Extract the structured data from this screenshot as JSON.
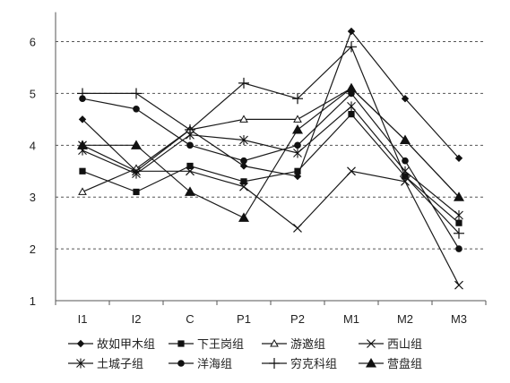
{
  "chart_data": {
    "type": "line",
    "categories": [
      "I1",
      "I2",
      "C",
      "P1",
      "P2",
      "M1",
      "M2",
      "M3"
    ],
    "ylim": [
      1,
      6.5
    ],
    "yticks": [
      1,
      2,
      3,
      4,
      5,
      6
    ],
    "grid": "horizontal dashed",
    "legend_position": "bottom",
    "series": [
      {
        "name": "故如甲木组",
        "marker": "diamond",
        "values": [
          4.5,
          3.5,
          4.3,
          3.6,
          3.4,
          6.2,
          4.9,
          3.75
        ]
      },
      {
        "name": "下王岗组",
        "marker": "square",
        "values": [
          3.5,
          3.1,
          3.6,
          3.3,
          3.5,
          4.6,
          3.4,
          2.5
        ]
      },
      {
        "name": "游邀组",
        "marker": "triangle-open",
        "values": [
          3.1,
          3.55,
          4.3,
          4.5,
          4.5,
          5.1,
          4.1,
          3.0
        ]
      },
      {
        "name": "西山组",
        "marker": "x",
        "values": [
          4.0,
          3.5,
          3.5,
          3.2,
          2.4,
          3.5,
          3.3,
          1.3
        ]
      },
      {
        "name": "土城子组",
        "marker": "asterisk",
        "values": [
          3.9,
          3.45,
          4.2,
          4.1,
          3.85,
          4.75,
          3.5,
          2.65
        ]
      },
      {
        "name": "洋海组",
        "marker": "circle",
        "values": [
          4.9,
          4.7,
          4.0,
          3.7,
          4.0,
          5.0,
          3.7,
          2.0
        ]
      },
      {
        "name": "穷克科组",
        "marker": "plus",
        "values": [
          5.0,
          5.0,
          4.3,
          5.2,
          4.9,
          5.9,
          3.4,
          2.3
        ]
      },
      {
        "name": "营盘组",
        "marker": "triangle",
        "values": [
          4.0,
          4.0,
          3.1,
          2.6,
          4.3,
          5.1,
          4.1,
          3.0
        ]
      }
    ]
  }
}
